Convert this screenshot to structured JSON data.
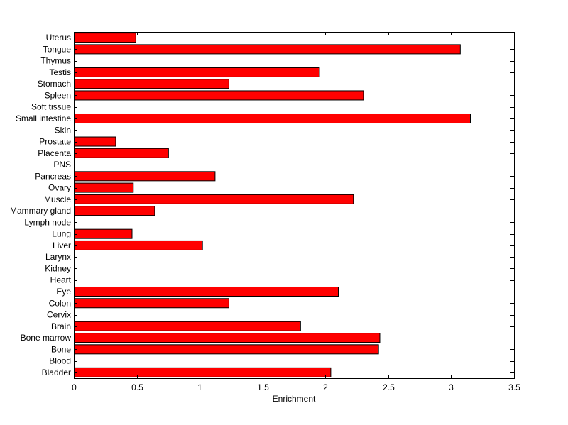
{
  "chart_data": {
    "type": "bar",
    "orientation": "horizontal",
    "title": "",
    "xlabel": "Enrichment",
    "ylabel": "",
    "xlim": [
      0,
      3.5
    ],
    "xticks": [
      0,
      0.5,
      1,
      1.5,
      2,
      2.5,
      3,
      3.5
    ],
    "xtick_labels": [
      "0",
      "0.5",
      "1",
      "1.5",
      "2",
      "2.5",
      "3",
      "3.5"
    ],
    "grid": false,
    "legend": "none",
    "bar_color": "#ff0000",
    "categories": [
      "Bladder",
      "Blood",
      "Bone",
      "Bone marrow",
      "Brain",
      "Cervix",
      "Colon",
      "Eye",
      "Heart",
      "Kidney",
      "Larynx",
      "Liver",
      "Lung",
      "Lymph node",
      "Mammary gland",
      "Muscle",
      "Ovary",
      "Pancreas",
      "PNS",
      "Placenta",
      "Prostate",
      "Skin",
      "Small intestine",
      "Soft tissue",
      "Spleen",
      "Stomach",
      "Testis",
      "Thymus",
      "Tongue",
      "Uterus"
    ],
    "values": [
      2.04,
      0,
      2.42,
      2.43,
      1.8,
      0,
      1.23,
      2.1,
      0,
      0,
      0,
      1.02,
      0.46,
      0,
      0.64,
      2.22,
      0.47,
      1.12,
      0,
      0.75,
      0.33,
      0,
      3.15,
      0,
      2.3,
      1.23,
      1.95,
      0,
      3.07,
      0.49
    ]
  }
}
